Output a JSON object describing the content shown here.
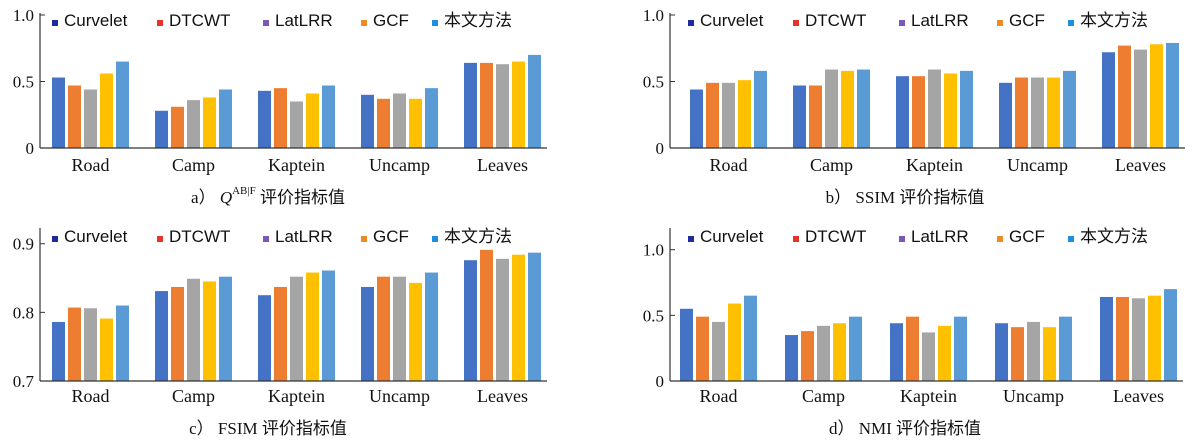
{
  "colors": {
    "legend_markers": [
      "#1f2a9c",
      "#e8332a",
      "#7a57b8",
      "#f08a24",
      "#1e8fe0"
    ],
    "bars": [
      "#4472c4",
      "#ed7d31",
      "#a5a5a5",
      "#ffc000",
      "#5b9bd5"
    ],
    "axis": "#333333"
  },
  "chart_data": [
    {
      "id": "a",
      "type": "bar",
      "caption_prefix": "a）",
      "caption_main": "Q",
      "caption_sup": "AB|F",
      "caption_suffix": " 评价指标值",
      "categories": [
        "Road",
        "Camp",
        "Kaptein",
        "Uncamp",
        "Leaves"
      ],
      "series": [
        {
          "name": "Curvelet",
          "values": [
            0.53,
            0.28,
            0.43,
            0.4,
            0.64
          ]
        },
        {
          "name": "DTCWT",
          "values": [
            0.47,
            0.31,
            0.45,
            0.37,
            0.64
          ]
        },
        {
          "name": "LatLRR",
          "values": [
            0.44,
            0.36,
            0.35,
            0.41,
            0.63
          ]
        },
        {
          "name": "GCF",
          "values": [
            0.56,
            0.38,
            0.41,
            0.37,
            0.65
          ]
        },
        {
          "name": "本文方法",
          "values": [
            0.65,
            0.44,
            0.47,
            0.45,
            0.7
          ]
        }
      ],
      "ylim": [
        0,
        1.0
      ],
      "yticks": [
        0,
        0.5,
        1.0
      ],
      "ytick_labels": [
        "0",
        "0.5",
        "1.0"
      ],
      "legend_position": "top"
    },
    {
      "id": "b",
      "type": "bar",
      "caption_prefix": "b）",
      "caption_main": "SSIM",
      "caption_sup": "",
      "caption_suffix": " 评价指标值",
      "categories": [
        "Road",
        "Camp",
        "Kaptein",
        "Uncamp",
        "Leaves"
      ],
      "series": [
        {
          "name": "Curvelet",
          "values": [
            0.44,
            0.47,
            0.54,
            0.49,
            0.72
          ]
        },
        {
          "name": "DTCWT",
          "values": [
            0.49,
            0.47,
            0.54,
            0.53,
            0.77
          ]
        },
        {
          "name": "LatLRR",
          "values": [
            0.49,
            0.59,
            0.59,
            0.53,
            0.74
          ]
        },
        {
          "name": "GCF",
          "values": [
            0.51,
            0.58,
            0.56,
            0.53,
            0.78
          ]
        },
        {
          "name": "本文方法",
          "values": [
            0.58,
            0.59,
            0.58,
            0.58,
            0.79
          ]
        }
      ],
      "ylim": [
        0,
        1.0
      ],
      "yticks": [
        0,
        0.5,
        1.0
      ],
      "ytick_labels": [
        "0",
        "0.5",
        "1.0"
      ],
      "legend_position": "top"
    },
    {
      "id": "c",
      "type": "bar",
      "caption_prefix": "c）",
      "caption_main": "FSIM",
      "caption_sup": "",
      "caption_suffix": " 评价指标值",
      "categories": [
        "Road",
        "Camp",
        "Kaptein",
        "Uncamp",
        "Leaves"
      ],
      "series": [
        {
          "name": "Curvelet",
          "values": [
            0.786,
            0.831,
            0.825,
            0.837,
            0.876
          ]
        },
        {
          "name": "DTCWT",
          "values": [
            0.807,
            0.837,
            0.837,
            0.852,
            0.891
          ]
        },
        {
          "name": "LatLRR",
          "values": [
            0.806,
            0.849,
            0.852,
            0.852,
            0.878
          ]
        },
        {
          "name": "GCF",
          "values": [
            0.791,
            0.845,
            0.858,
            0.843,
            0.884
          ]
        },
        {
          "name": "本文方法",
          "values": [
            0.81,
            0.852,
            0.861,
            0.858,
            0.887
          ]
        }
      ],
      "ylim": [
        0.7,
        0.92
      ],
      "yticks": [
        0.7,
        0.8,
        0.9
      ],
      "ytick_labels": [
        "0.7",
        "0.8",
        "0.9"
      ],
      "legend_position": "top"
    },
    {
      "id": "d",
      "type": "bar",
      "caption_prefix": "d）",
      "caption_main": "NMI",
      "caption_sup": "",
      "caption_suffix": " 评价指标值",
      "categories": [
        "Road",
        "Camp",
        "Kaptein",
        "Uncamp",
        "Leaves"
      ],
      "series": [
        {
          "name": "Curvelet",
          "values": [
            0.55,
            0.35,
            0.44,
            0.44,
            0.64
          ]
        },
        {
          "name": "DTCWT",
          "values": [
            0.49,
            0.38,
            0.49,
            0.41,
            0.64
          ]
        },
        {
          "name": "LatLRR",
          "values": [
            0.45,
            0.42,
            0.37,
            0.45,
            0.63
          ]
        },
        {
          "name": "GCF",
          "values": [
            0.59,
            0.44,
            0.42,
            0.41,
            0.65
          ]
        },
        {
          "name": "本文方法",
          "values": [
            0.65,
            0.49,
            0.49,
            0.49,
            0.7
          ]
        }
      ],
      "ylim": [
        0,
        1.15
      ],
      "yticks": [
        0,
        0.5,
        1.0
      ],
      "ytick_labels": [
        "0",
        "0.5",
        "1.0"
      ],
      "legend_position": "top"
    }
  ]
}
